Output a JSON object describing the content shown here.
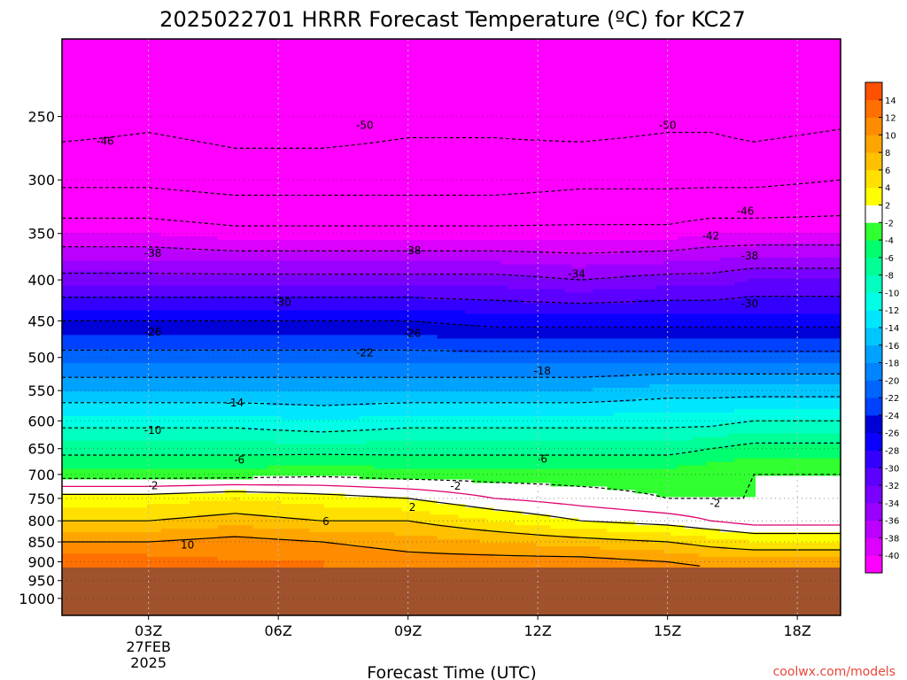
{
  "chart_data": {
    "type": "heatmap",
    "title": "2025022701 HRRR Forecast Temperature (ºC) for KC27",
    "xlabel": "Forecast Time (UTC)",
    "ylabel": "",
    "x_ticks": [
      {
        "hour": 3,
        "label": "03Z",
        "sub": [
          "27FEB",
          "2025"
        ]
      },
      {
        "hour": 6,
        "label": "06Z",
        "sub": []
      },
      {
        "hour": 9,
        "label": "09Z",
        "sub": []
      },
      {
        "hour": 12,
        "label": "12Z",
        "sub": []
      },
      {
        "hour": 15,
        "label": "15Z",
        "sub": []
      },
      {
        "hour": 18,
        "label": "18Z",
        "sub": []
      }
    ],
    "xlim": [
      1,
      19
    ],
    "y_scale": "log",
    "y_ticks": [
      250,
      300,
      350,
      400,
      450,
      500,
      550,
      600,
      650,
      700,
      750,
      800,
      850,
      900,
      950,
      1000
    ],
    "ylim": [
      200,
      1050
    ],
    "ground_level_hPa": 915,
    "ground_color": "#a0522d",
    "colorbar": {
      "levels": [
        -42,
        -40,
        -38,
        -36,
        -34,
        -32,
        -30,
        -28,
        -26,
        -24,
        -22,
        -20,
        -18,
        -16,
        -14,
        -12,
        -10,
        -8,
        -6,
        -4,
        -2,
        2,
        4,
        6,
        8,
        10,
        12,
        14,
        16
      ],
      "colors": [
        "#ff00ff",
        "#dd00ff",
        "#bb00ff",
        "#9900ff",
        "#7a00ff",
        "#5c00ff",
        "#3300ff",
        "#0a00ff",
        "#0000d8",
        "#0040ff",
        "#0064ff",
        "#0084ff",
        "#00a2ff",
        "#00c6ff",
        "#00e6ff",
        "#00ffe6",
        "#00ffc0",
        "#00ff96",
        "#00ff6e",
        "#30ff30",
        "#ffffff",
        "#ffff00",
        "#ffe000",
        "#ffc000",
        "#ffa500",
        "#ff8c00",
        "#ff7000",
        "#ff5000"
      ],
      "tick_labels": [
        "-40",
        "-38",
        "-36",
        "-34",
        "-32",
        "-30",
        "-28",
        "-26",
        "-24",
        "-22",
        "-20",
        "-18",
        "-16",
        "-14",
        "-12",
        "-10",
        "-8",
        "-6",
        "-4",
        "-2",
        "2",
        "4",
        "6",
        "8",
        "10",
        "12",
        "14"
      ]
    },
    "profile_hours": [
      1,
      3,
      5,
      7,
      9,
      11,
      13,
      15,
      16,
      17,
      19
    ],
    "temperature_profiles": [
      {
        "p": 250,
        "t": [
          -52,
          -51,
          -52,
          -52,
          -51,
          -51,
          -52,
          -51,
          -51,
          -52,
          -51
        ]
      },
      {
        "p": 300,
        "t": [
          -47,
          -47,
          -48,
          -48,
          -48,
          -48,
          -47,
          -47,
          -47,
          -47,
          -46
        ]
      },
      {
        "p": 350,
        "t": [
          -40,
          -40,
          -41,
          -41,
          -41,
          -41,
          -41,
          -41,
          -40,
          -40,
          -40
        ]
      },
      {
        "p": 400,
        "t": [
          -33,
          -33,
          -33,
          -33,
          -33,
          -33,
          -34,
          -33,
          -33,
          -32,
          -32
        ]
      },
      {
        "p": 450,
        "t": [
          -26,
          -26,
          -26,
          -26,
          -26,
          -27,
          -27,
          -27,
          -27,
          -27,
          -27
        ]
      },
      {
        "p": 500,
        "t": [
          -21,
          -21,
          -21,
          -21,
          -21,
          -21,
          -21,
          -21,
          -21,
          -21,
          -21
        ]
      },
      {
        "p": 550,
        "t": [
          -16,
          -16,
          -16,
          -16,
          -16,
          -16,
          -16,
          -15,
          -15,
          -15,
          -15
        ]
      },
      {
        "p": 600,
        "t": [
          -11,
          -11,
          -11,
          -12,
          -11,
          -11,
          -11,
          -11,
          -11,
          -10,
          -10
        ]
      },
      {
        "p": 650,
        "t": [
          -7,
          -7,
          -7,
          -7,
          -7,
          -7,
          -7,
          -7,
          -6,
          -5,
          -5
        ]
      },
      {
        "p": 700,
        "t": [
          -3,
          -3,
          -3,
          -2.5,
          -3,
          -3,
          -3,
          -3,
          -2.5,
          -2,
          -2
        ]
      },
      {
        "p": 750,
        "t": [
          3,
          3,
          4,
          3,
          2,
          0,
          -1,
          -2,
          -2,
          -2,
          -2
        ]
      },
      {
        "p": 800,
        "t": [
          6,
          6,
          7,
          6,
          6,
          4,
          2,
          1,
          0,
          -1,
          -1
        ]
      },
      {
        "p": 850,
        "t": [
          10,
          10,
          11,
          10,
          9,
          8,
          7,
          6,
          5,
          4,
          4
        ]
      },
      {
        "p": 900,
        "t": [
          13,
          13,
          12,
          12,
          11,
          11,
          11,
          10,
          9,
          9,
          9
        ]
      },
      {
        "p": 915,
        "t": [
          14,
          14,
          13,
          12,
          12,
          12,
          12,
          11,
          10,
          10,
          10
        ]
      }
    ],
    "contour_labels": [
      {
        "text": "-46",
        "hour": 2.0,
        "p": 268
      },
      {
        "text": "-50",
        "hour": 8.0,
        "p": 256
      },
      {
        "text": "-50",
        "hour": 15.0,
        "p": 256
      },
      {
        "text": "-46",
        "hour": 16.8,
        "p": 328
      },
      {
        "text": "-42",
        "hour": 16.0,
        "p": 352
      },
      {
        "text": "-38",
        "hour": 3.1,
        "p": 370
      },
      {
        "text": "-38",
        "hour": 9.1,
        "p": 367
      },
      {
        "text": "-38",
        "hour": 16.9,
        "p": 373
      },
      {
        "text": "-34",
        "hour": 12.9,
        "p": 393
      },
      {
        "text": "-30",
        "hour": 6.1,
        "p": 426
      },
      {
        "text": "-30",
        "hour": 16.9,
        "p": 428
      },
      {
        "text": "-26",
        "hour": 3.1,
        "p": 464
      },
      {
        "text": "-26",
        "hour": 9.1,
        "p": 466
      },
      {
        "text": "-22",
        "hour": 8.0,
        "p": 493
      },
      {
        "text": "-18",
        "hour": 12.1,
        "p": 519
      },
      {
        "text": "-14",
        "hour": 5.0,
        "p": 569
      },
      {
        "text": "-10",
        "hour": 3.1,
        "p": 616
      },
      {
        "text": "-6",
        "hour": 5.1,
        "p": 671
      },
      {
        "text": "-6",
        "hour": 12.1,
        "p": 669
      },
      {
        "text": "-2",
        "hour": 3.1,
        "p": 722
      },
      {
        "text": "-2",
        "hour": 10.1,
        "p": 723
      },
      {
        "text": "-2",
        "hour": 16.1,
        "p": 760
      },
      {
        "text": "2",
        "hour": 9.1,
        "p": 769
      },
      {
        "text": "6",
        "hour": 7.1,
        "p": 801
      },
      {
        "text": "10",
        "hour": 3.9,
        "p": 856
      }
    ]
  },
  "watermark": "coolwx.com/models"
}
